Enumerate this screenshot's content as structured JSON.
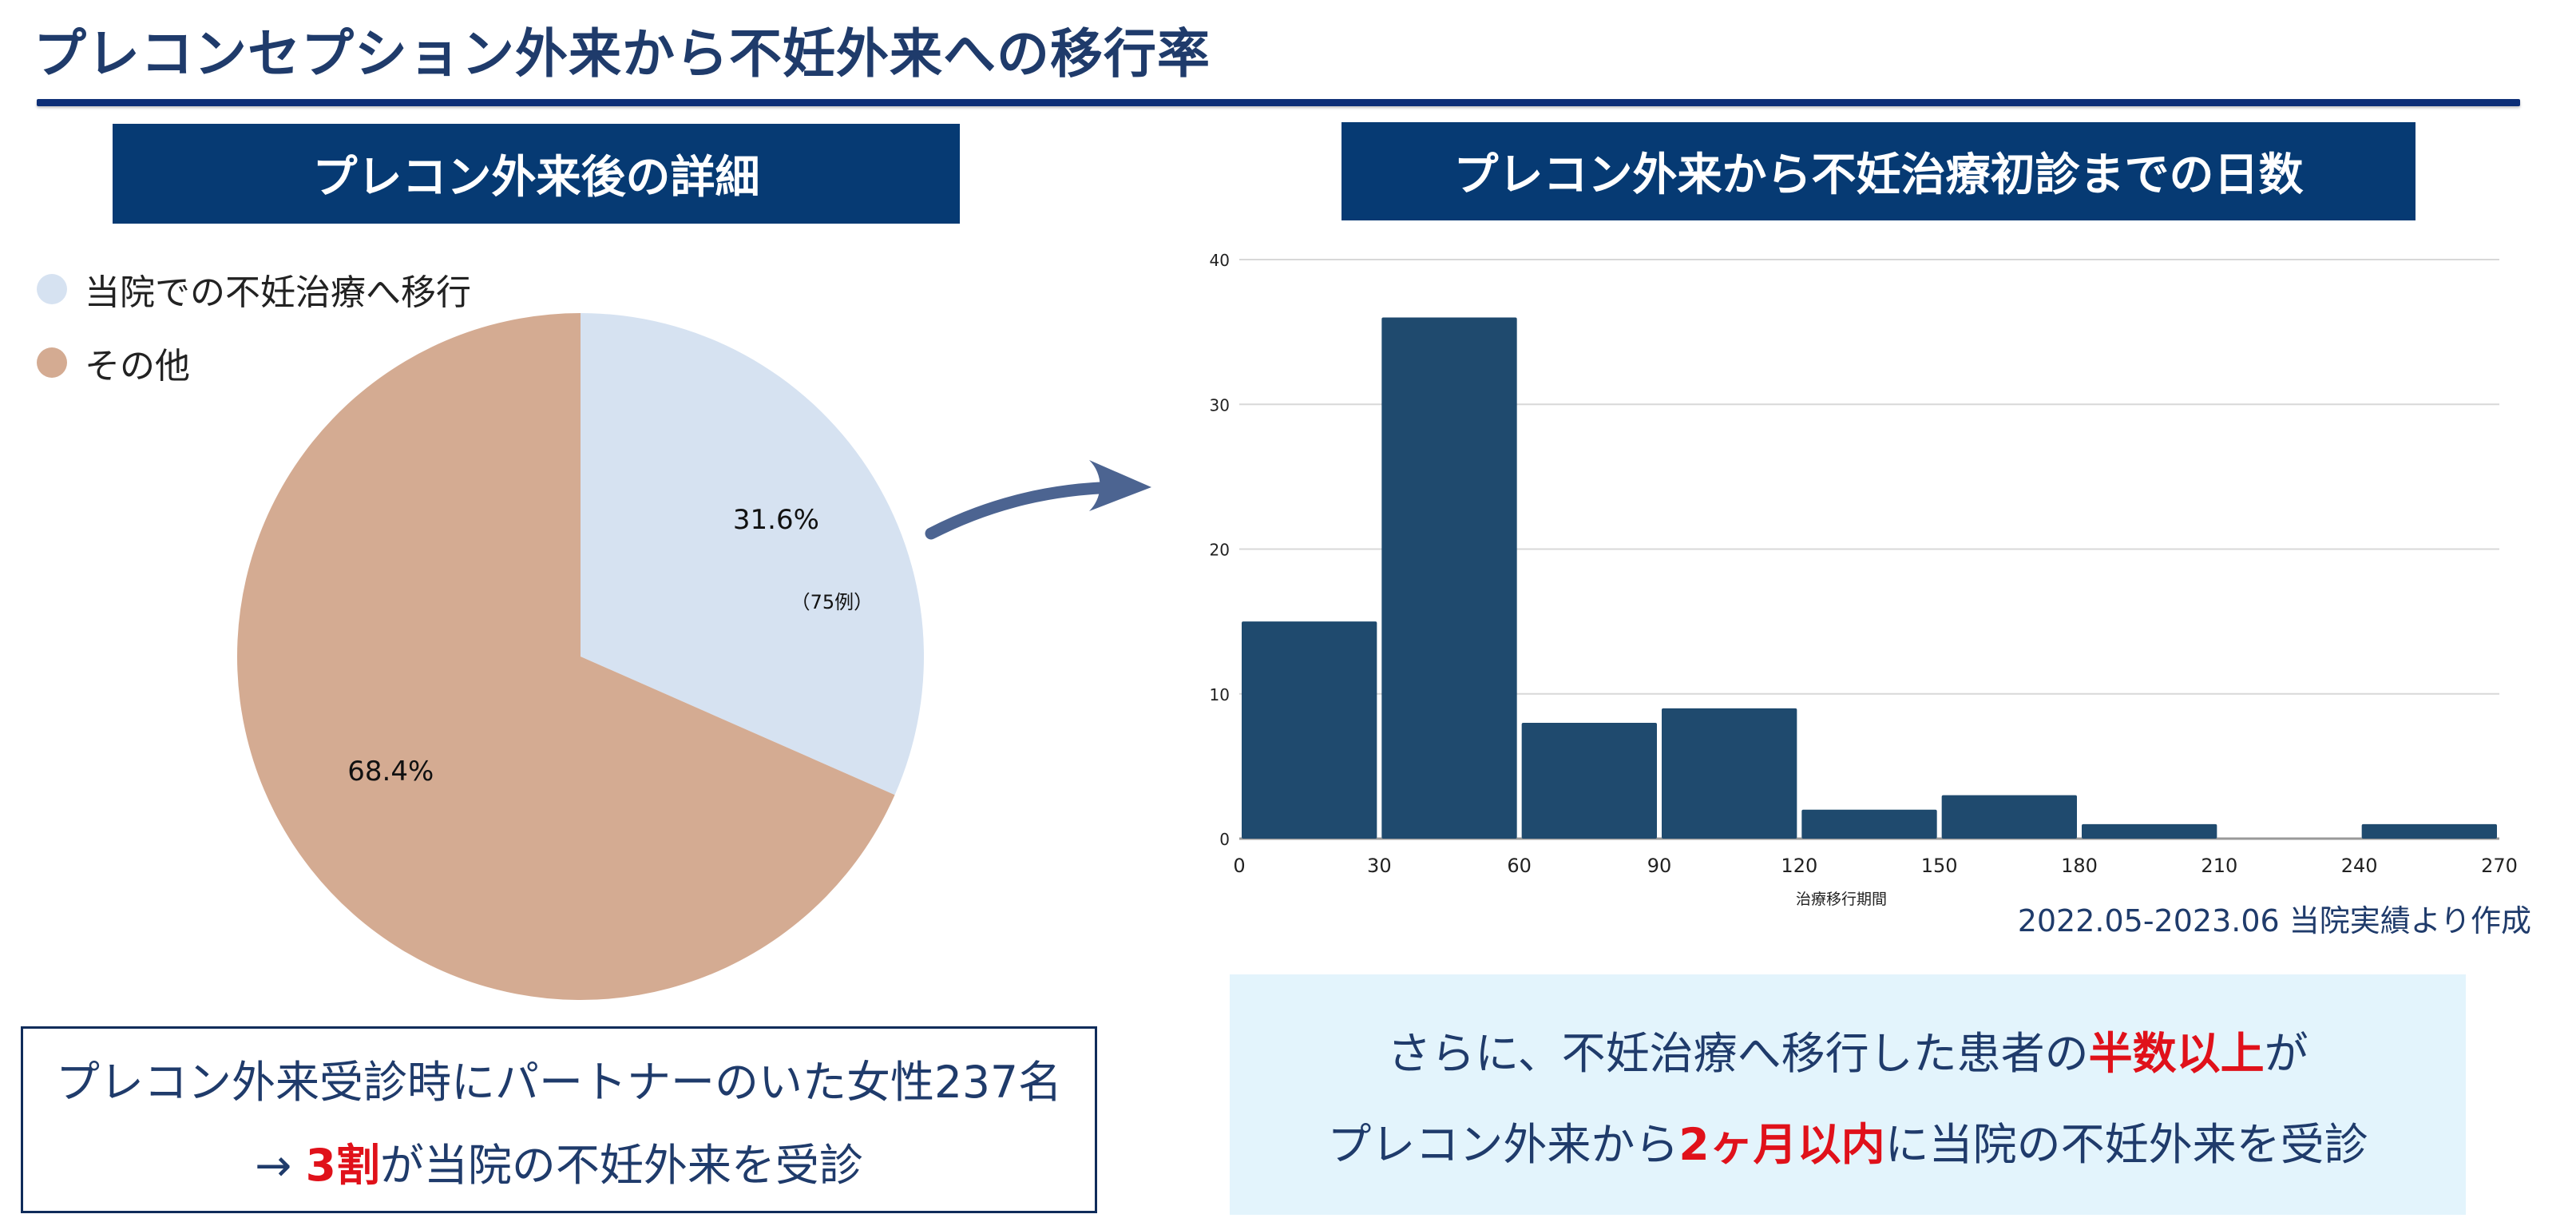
{
  "page": {
    "title": "プレコンセプション外来から不妊外来への移行率",
    "left_banner": "プレコン外来後の詳細",
    "right_banner": "プレコン外来から不妊治療初診までの日数",
    "source_note": "2022.05-2023.06 当院実績より作成"
  },
  "legend": [
    {
      "label": "当院での不妊治療へ移行",
      "color": "#d6e2f1"
    },
    {
      "label": "その他",
      "color": "#d4ab92"
    }
  ],
  "note_left": {
    "line1": "プレコン外来受診時にパートナーのいた女性237名",
    "line2_prefix": "→ ",
    "line2_highlight": "3割",
    "line2_suffix": "が当院の不妊外来を受診"
  },
  "note_right": {
    "line1_prefix": "さらに、不妊治療へ移行した患者の",
    "line1_highlight": "半数以上",
    "line1_suffix": "が",
    "line2_prefix": "プレコン外来から",
    "line2_highlight": "2ヶ月以内",
    "line2_suffix": "に当院の不妊外来を受診"
  },
  "arrow_icon": "curved-arrow-icon",
  "chart_data": [
    {
      "type": "pie",
      "categories": [
        "当院での不妊治療へ移行",
        "その他"
      ],
      "values": [
        31.6,
        68.4
      ],
      "value_labels": [
        "31.6%",
        "68.4%"
      ],
      "sub_label": "（75例）",
      "colors": [
        "#d6e2f1",
        "#d4ab92"
      ],
      "legend_position": "top-left"
    },
    {
      "type": "bar",
      "bin_edges": [
        0,
        30,
        60,
        90,
        120,
        150,
        180,
        210,
        240,
        270
      ],
      "values": [
        15,
        36,
        8,
        9,
        2,
        3,
        1,
        0,
        1
      ],
      "x_ticks": [
        0,
        30,
        60,
        90,
        120,
        150,
        180,
        210,
        240,
        270
      ],
      "y_ticks": [
        0,
        10,
        20,
        30,
        40
      ],
      "xlim": [
        0,
        270
      ],
      "ylim": [
        0,
        40
      ],
      "xlabel": "治療移行期間",
      "ylabel": "",
      "bar_color": "#1f4a6e",
      "grid": true
    }
  ]
}
